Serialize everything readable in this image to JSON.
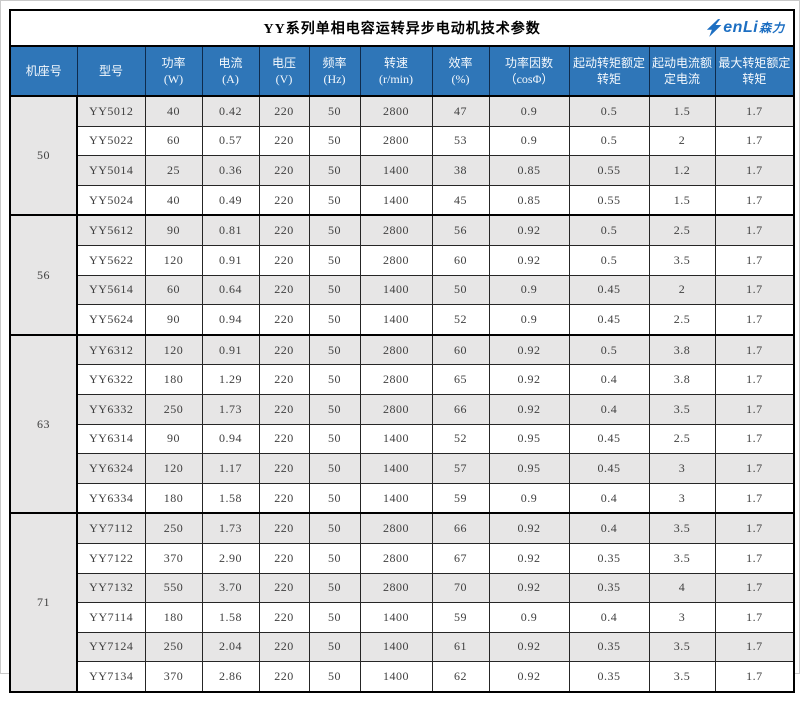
{
  "title": "YY系列单相电容运转异步电动机技术参数",
  "logo": {
    "en": "enLi",
    "cn": "森力",
    "icon": "lightning-bolt"
  },
  "colors": {
    "header_bg": "#2f76b8",
    "header_text": "#ffffff",
    "row_stripe": "#e7e6e6",
    "border": "#000000",
    "body_text": "#404040",
    "logo_blue": "#1d6fc2"
  },
  "table": {
    "headers": [
      {
        "key": "frame",
        "label": "机座号",
        "sub": ""
      },
      {
        "key": "model",
        "label": "型号",
        "sub": ""
      },
      {
        "key": "power",
        "label": "功率",
        "sub": "(W)"
      },
      {
        "key": "current",
        "label": "电流",
        "sub": "(A)"
      },
      {
        "key": "voltage",
        "label": "电压",
        "sub": "(V)"
      },
      {
        "key": "frequency",
        "label": "频率",
        "sub": "(Hz)"
      },
      {
        "key": "speed",
        "label": "转速",
        "sub": "(r/min)"
      },
      {
        "key": "efficiency",
        "label": "效率",
        "sub": "(%)"
      },
      {
        "key": "power-factor",
        "label": "功率因数",
        "sub": "（cosΦ）"
      },
      {
        "key": "start-torque-ratio",
        "label": "起动转矩额定转矩",
        "sub": ""
      },
      {
        "key": "start-current-ratio",
        "label": "起动电流额定电流",
        "sub": ""
      },
      {
        "key": "max-torque-ratio",
        "label": "最大转矩额定转矩",
        "sub": ""
      }
    ],
    "sections": [
      {
        "frame": "50",
        "rows": [
          [
            "YY5012",
            "40",
            "0.42",
            "220",
            "50",
            "2800",
            "47",
            "0.9",
            "0.5",
            "1.5",
            "1.7"
          ],
          [
            "YY5022",
            "60",
            "0.57",
            "220",
            "50",
            "2800",
            "53",
            "0.9",
            "0.5",
            "2",
            "1.7"
          ],
          [
            "YY5014",
            "25",
            "0.36",
            "220",
            "50",
            "1400",
            "38",
            "0.85",
            "0.55",
            "1.2",
            "1.7"
          ],
          [
            "YY5024",
            "40",
            "0.49",
            "220",
            "50",
            "1400",
            "45",
            "0.85",
            "0.55",
            "1.5",
            "1.7"
          ]
        ]
      },
      {
        "frame": "56",
        "rows": [
          [
            "YY5612",
            "90",
            "0.81",
            "220",
            "50",
            "2800",
            "56",
            "0.92",
            "0.5",
            "2.5",
            "1.7"
          ],
          [
            "YY5622",
            "120",
            "0.91",
            "220",
            "50",
            "2800",
            "60",
            "0.92",
            "0.5",
            "3.5",
            "1.7"
          ],
          [
            "YY5614",
            "60",
            "0.64",
            "220",
            "50",
            "1400",
            "50",
            "0.9",
            "0.45",
            "2",
            "1.7"
          ],
          [
            "YY5624",
            "90",
            "0.94",
            "220",
            "50",
            "1400",
            "52",
            "0.9",
            "0.45",
            "2.5",
            "1.7"
          ]
        ]
      },
      {
        "frame": "63",
        "rows": [
          [
            "YY6312",
            "120",
            "0.91",
            "220",
            "50",
            "2800",
            "60",
            "0.92",
            "0.5",
            "3.8",
            "1.7"
          ],
          [
            "YY6322",
            "180",
            "1.29",
            "220",
            "50",
            "2800",
            "65",
            "0.92",
            "0.4",
            "3.8",
            "1.7"
          ],
          [
            "YY6332",
            "250",
            "1.73",
            "220",
            "50",
            "2800",
            "66",
            "0.92",
            "0.4",
            "3.5",
            "1.7"
          ],
          [
            "YY6314",
            "90",
            "0.94",
            "220",
            "50",
            "1400",
            "52",
            "0.95",
            "0.45",
            "2.5",
            "1.7"
          ],
          [
            "YY6324",
            "120",
            "1.17",
            "220",
            "50",
            "1400",
            "57",
            "0.95",
            "0.45",
            "3",
            "1.7"
          ],
          [
            "YY6334",
            "180",
            "1.58",
            "220",
            "50",
            "1400",
            "59",
            "0.9",
            "0.4",
            "3",
            "1.7"
          ]
        ]
      },
      {
        "frame": "71",
        "rows": [
          [
            "YY7112",
            "250",
            "1.73",
            "220",
            "50",
            "2800",
            "66",
            "0.92",
            "0.4",
            "3.5",
            "1.7"
          ],
          [
            "YY7122",
            "370",
            "2.90",
            "220",
            "50",
            "2800",
            "67",
            "0.92",
            "0.35",
            "3.5",
            "1.7"
          ],
          [
            "YY7132",
            "550",
            "3.70",
            "220",
            "50",
            "2800",
            "70",
            "0.92",
            "0.35",
            "4",
            "1.7"
          ],
          [
            "YY7114",
            "180",
            "1.58",
            "220",
            "50",
            "1400",
            "59",
            "0.9",
            "0.4",
            "3",
            "1.7"
          ],
          [
            "YY7124",
            "250",
            "2.04",
            "220",
            "50",
            "1400",
            "61",
            "0.92",
            "0.35",
            "3.5",
            "1.7"
          ],
          [
            "YY7134",
            "370",
            "2.86",
            "220",
            "50",
            "1400",
            "62",
            "0.92",
            "0.35",
            "3.5",
            "1.7"
          ]
        ]
      }
    ]
  }
}
